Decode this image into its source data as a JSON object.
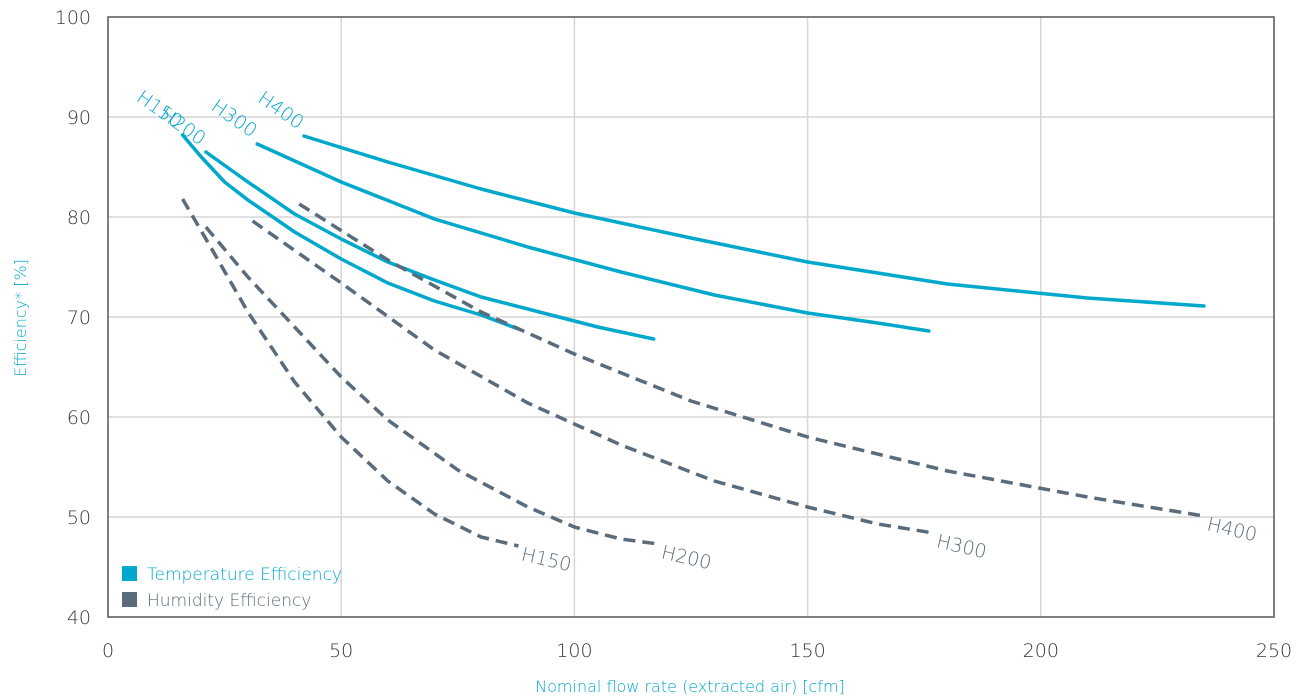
{
  "chart_data": {
    "type": "line",
    "xlabel": "Nominal flow rate (extracted air) [cfm]",
    "ylabel": "Efficiency* [%]",
    "xlim": [
      0,
      250
    ],
    "ylim": [
      40,
      100
    ],
    "x_ticks": [
      0,
      50,
      100,
      150,
      200,
      250
    ],
    "y_ticks": [
      40,
      50,
      60,
      70,
      80,
      90,
      100
    ],
    "grid": true,
    "legend_position": "bottom-left",
    "colors": {
      "temperature": "#00a8cc",
      "humidity": "#5a6b7b",
      "grid": "#d6d6d6",
      "axis": "#555555"
    },
    "legend": [
      {
        "label": "Temperature Efficiency",
        "color": "#00a8cc"
      },
      {
        "label": "Humidity Efficiency",
        "color": "#5a6b7b"
      }
    ],
    "series": [
      {
        "name": "H150",
        "group": "temperature",
        "style": "solid",
        "points": [
          [
            16,
            88.2
          ],
          [
            20,
            86
          ],
          [
            25,
            83.5
          ],
          [
            30,
            81.7
          ],
          [
            40,
            78.5
          ],
          [
            50,
            75.8
          ],
          [
            60,
            73.4
          ],
          [
            70,
            71.6
          ],
          [
            80,
            70.2
          ],
          [
            88,
            68.8
          ]
        ]
      },
      {
        "name": "H200",
        "group": "temperature",
        "style": "solid",
        "points": [
          [
            21,
            86.5
          ],
          [
            30,
            83.5
          ],
          [
            40,
            80.3
          ],
          [
            50,
            77.8
          ],
          [
            60,
            75.5
          ],
          [
            70,
            73.7
          ],
          [
            80,
            72
          ],
          [
            90,
            70.8
          ],
          [
            105,
            69
          ],
          [
            117,
            67.8
          ]
        ]
      },
      {
        "name": "H300",
        "group": "temperature",
        "style": "solid",
        "points": [
          [
            32,
            87.3
          ],
          [
            50,
            83.5
          ],
          [
            70,
            79.8
          ],
          [
            90,
            77
          ],
          [
            110,
            74.5
          ],
          [
            130,
            72.2
          ],
          [
            150,
            70.4
          ],
          [
            165,
            69.4
          ],
          [
            176,
            68.6
          ]
        ]
      },
      {
        "name": "H400",
        "group": "temperature",
        "style": "solid",
        "points": [
          [
            42,
            88.1
          ],
          [
            60,
            85.5
          ],
          [
            80,
            82.8
          ],
          [
            100,
            80.4
          ],
          [
            125,
            77.9
          ],
          [
            150,
            75.5
          ],
          [
            180,
            73.3
          ],
          [
            210,
            71.9
          ],
          [
            235,
            71.1
          ]
        ]
      },
      {
        "name": "H150",
        "group": "humidity",
        "style": "dashed",
        "points": [
          [
            16,
            81.8
          ],
          [
            22,
            77
          ],
          [
            30,
            70.5
          ],
          [
            40,
            63.5
          ],
          [
            50,
            58
          ],
          [
            60,
            53.6
          ],
          [
            70,
            50.3
          ],
          [
            80,
            48
          ],
          [
            88,
            47.1
          ]
        ]
      },
      {
        "name": "H200",
        "group": "humidity",
        "style": "dashed",
        "points": [
          [
            21,
            79
          ],
          [
            30,
            74
          ],
          [
            40,
            69
          ],
          [
            50,
            64
          ],
          [
            60,
            59.7
          ],
          [
            75,
            54.7
          ],
          [
            90,
            51
          ],
          [
            100,
            49
          ],
          [
            110,
            47.8
          ],
          [
            118,
            47.3
          ]
        ]
      },
      {
        "name": "H300",
        "group": "humidity",
        "style": "dashed",
        "points": [
          [
            31,
            79.6
          ],
          [
            50,
            73.4
          ],
          [
            70,
            66.7
          ],
          [
            90,
            61.4
          ],
          [
            110,
            57.2
          ],
          [
            130,
            53.6
          ],
          [
            150,
            51
          ],
          [
            165,
            49.3
          ],
          [
            177,
            48.4
          ]
        ]
      },
      {
        "name": "H400",
        "group": "humidity",
        "style": "dashed",
        "points": [
          [
            41,
            81.3
          ],
          [
            60,
            75.7
          ],
          [
            80,
            70.5
          ],
          [
            100,
            66.3
          ],
          [
            125,
            61.6
          ],
          [
            150,
            58
          ],
          [
            180,
            54.6
          ],
          [
            210,
            52
          ],
          [
            235,
            50.1
          ]
        ]
      }
    ]
  }
}
